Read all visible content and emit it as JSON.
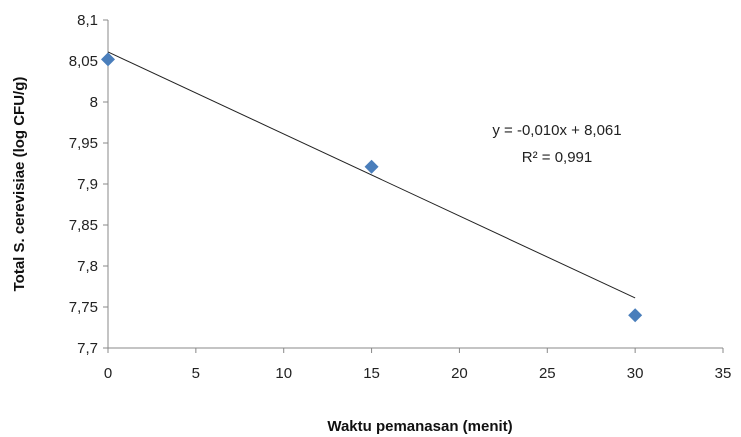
{
  "chart_data": {
    "type": "scatter",
    "xlabel": "Waktu pemanasan (menit)",
    "ylabel": "Total  S. cerevisiae (log CFU/g)",
    "xlim": [
      0,
      35
    ],
    "ylim": [
      7.7,
      8.1
    ],
    "x_ticks": [
      "0",
      "5",
      "10",
      "15",
      "20",
      "25",
      "30",
      "35"
    ],
    "y_ticks": [
      "7,7",
      "7,75",
      "7,8",
      "7,85",
      "7,9",
      "7,95",
      "8",
      "8,05",
      "8,1"
    ],
    "grid": false,
    "marker": "diamond",
    "marker_color": "#4a7ebb",
    "series": [
      {
        "x": [
          0,
          15,
          30
        ],
        "y": [
          8.052,
          7.921,
          7.74
        ]
      }
    ],
    "trendline": {
      "type": "linear",
      "slope": -0.01,
      "intercept": 8.061,
      "x_range": [
        0,
        30
      ],
      "equation": "y = -0,010x + 8,061",
      "r_squared": "R² = 0,991"
    }
  }
}
